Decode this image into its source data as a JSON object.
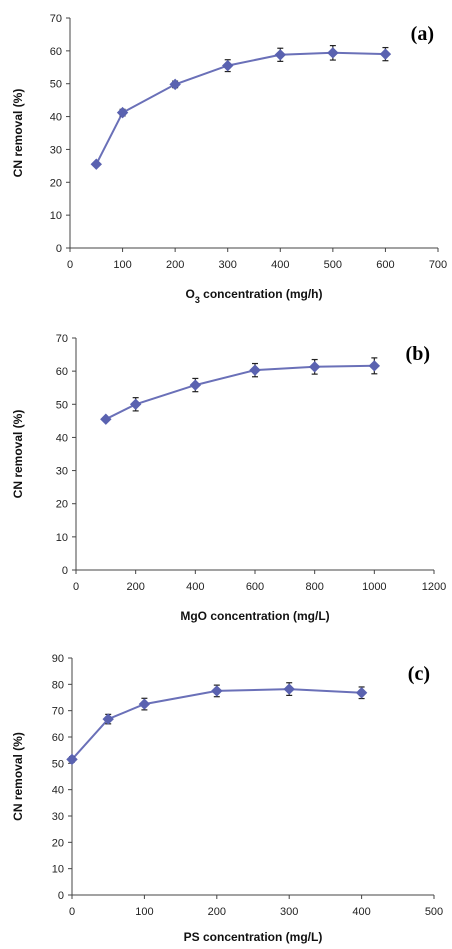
{
  "colors": {
    "series": "#6a70b8",
    "marker": "#5a62b0",
    "axis": "#444444"
  },
  "chart_data": [
    {
      "type": "line",
      "panel_label": "(a)",
      "xlabel": "O₃ concentration (mg/h)",
      "ylabel": "CN removal (%)",
      "xlim": [
        0,
        700
      ],
      "ylim": [
        0,
        70
      ],
      "x_ticks": [
        0,
        100,
        200,
        300,
        400,
        500,
        600,
        700
      ],
      "y_ticks": [
        0,
        10,
        20,
        30,
        40,
        50,
        60,
        70
      ],
      "grid": false,
      "series": [
        {
          "x": [
            50,
            100,
            200,
            300,
            400,
            500,
            600
          ],
          "values": [
            25.5,
            41.2,
            49.8,
            55.5,
            58.8,
            59.4,
            59.0
          ],
          "errors": [
            0.5,
            1.0,
            1.0,
            1.8,
            2.0,
            2.2,
            2.0
          ]
        }
      ]
    },
    {
      "type": "line",
      "panel_label": "(b)",
      "xlabel": "MgO concentration (mg/L)",
      "ylabel": "CN removal (%)",
      "xlim": [
        0,
        1200
      ],
      "ylim": [
        0,
        70
      ],
      "x_ticks": [
        0,
        200,
        400,
        600,
        800,
        1000,
        1200
      ],
      "y_ticks": [
        0,
        10,
        20,
        30,
        40,
        50,
        60,
        70
      ],
      "grid": false,
      "series": [
        {
          "x": [
            100,
            200,
            400,
            600,
            800,
            1000
          ],
          "values": [
            45.5,
            50.0,
            55.8,
            60.3,
            61.3,
            61.6
          ],
          "errors": [
            0.5,
            2.0,
            2.0,
            2.0,
            2.2,
            2.4
          ]
        }
      ]
    },
    {
      "type": "line",
      "panel_label": "(c)",
      "xlabel": "PS concentration (mg/L)",
      "ylabel": "CN removal (%)",
      "xlim": [
        0,
        500
      ],
      "ylim": [
        0,
        90
      ],
      "x_ticks": [
        0,
        100,
        200,
        300,
        400,
        500
      ],
      "y_ticks": [
        0,
        10,
        20,
        30,
        40,
        50,
        60,
        70,
        80,
        90
      ],
      "grid": false,
      "series": [
        {
          "x": [
            0,
            50,
            100,
            200,
            300,
            400
          ],
          "values": [
            51.5,
            66.8,
            72.5,
            77.5,
            78.2,
            76.8
          ],
          "errors": [
            1.0,
            1.8,
            2.2,
            2.2,
            2.4,
            2.2
          ]
        }
      ]
    }
  ]
}
